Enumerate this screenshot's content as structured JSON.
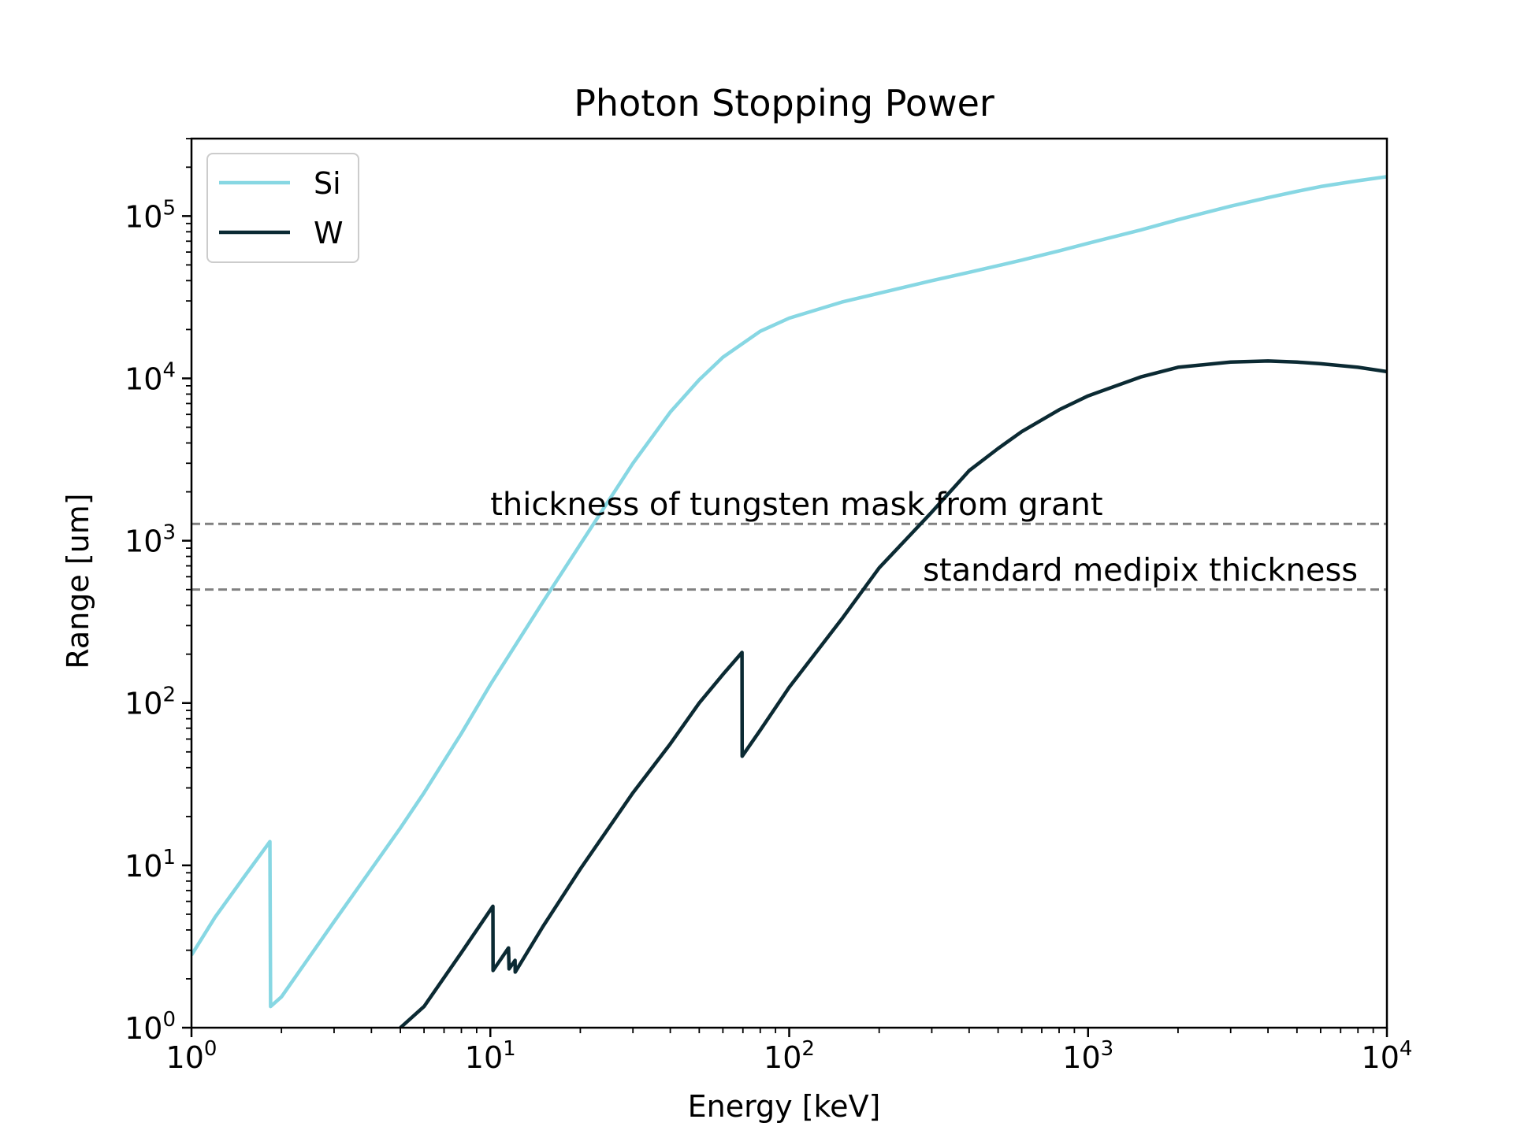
{
  "chart_data": {
    "type": "line",
    "title": "Photon Stopping Power",
    "xlabel": "Energy [keV]",
    "ylabel": "Range [um]",
    "xscale": "log",
    "yscale": "log",
    "xlim": [
      1,
      10000
    ],
    "ylim": [
      1,
      300000
    ],
    "grid": false,
    "legend_position": "top-left",
    "x_ticks": [
      {
        "base": "10",
        "exp": "0",
        "value": 1
      },
      {
        "base": "10",
        "exp": "1",
        "value": 10
      },
      {
        "base": "10",
        "exp": "2",
        "value": 100
      },
      {
        "base": "10",
        "exp": "3",
        "value": 1000
      },
      {
        "base": "10",
        "exp": "4",
        "value": 10000
      }
    ],
    "y_ticks": [
      {
        "base": "10",
        "exp": "0",
        "value": 1
      },
      {
        "base": "10",
        "exp": "1",
        "value": 10
      },
      {
        "base": "10",
        "exp": "2",
        "value": 100
      },
      {
        "base": "10",
        "exp": "3",
        "value": 1000
      },
      {
        "base": "10",
        "exp": "4",
        "value": 10000
      },
      {
        "base": "10",
        "exp": "5",
        "value": 100000
      }
    ],
    "series": [
      {
        "name": "Si",
        "color": "#87d7e3",
        "points": [
          [
            1,
            2.8
          ],
          [
            1.2,
            4.8
          ],
          [
            1.5,
            8.5
          ],
          [
            1.83,
            14
          ],
          [
            1.84,
            1.35
          ],
          [
            2,
            1.55
          ],
          [
            3,
            4.5
          ],
          [
            4,
            9.5
          ],
          [
            5,
            17
          ],
          [
            6,
            28
          ],
          [
            8,
            65
          ],
          [
            10,
            130
          ],
          [
            15,
            420
          ],
          [
            20,
            950
          ],
          [
            30,
            3000
          ],
          [
            40,
            6200
          ],
          [
            50,
            9800
          ],
          [
            60,
            13500
          ],
          [
            80,
            19500
          ],
          [
            100,
            23500
          ],
          [
            150,
            29500
          ],
          [
            200,
            33500
          ],
          [
            300,
            40000
          ],
          [
            400,
            45000
          ],
          [
            500,
            49500
          ],
          [
            600,
            53500
          ],
          [
            800,
            61000
          ],
          [
            1000,
            68000
          ],
          [
            1500,
            82000
          ],
          [
            2000,
            95000
          ],
          [
            3000,
            115000
          ],
          [
            4000,
            130000
          ],
          [
            5000,
            142000
          ],
          [
            6000,
            152000
          ],
          [
            8000,
            165000
          ],
          [
            10000,
            175000
          ]
        ]
      },
      {
        "name": "W",
        "color": "#0b2a33",
        "points": [
          [
            5,
            1.0
          ],
          [
            6,
            1.35
          ],
          [
            8,
            2.9
          ],
          [
            10.2,
            5.6
          ],
          [
            10.21,
            2.25
          ],
          [
            11.5,
            3.1
          ],
          [
            11.55,
            2.3
          ],
          [
            12.1,
            2.6
          ],
          [
            12.11,
            2.2
          ],
          [
            15,
            4.2
          ],
          [
            20,
            9.5
          ],
          [
            30,
            28
          ],
          [
            40,
            56
          ],
          [
            50,
            100
          ],
          [
            60,
            150
          ],
          [
            69.5,
            205
          ],
          [
            69.6,
            47
          ],
          [
            80,
            68
          ],
          [
            100,
            125
          ],
          [
            150,
            330
          ],
          [
            200,
            680
          ],
          [
            300,
            1500
          ],
          [
            400,
            2700
          ],
          [
            500,
            3700
          ],
          [
            600,
            4700
          ],
          [
            800,
            6400
          ],
          [
            1000,
            7800
          ],
          [
            1500,
            10200
          ],
          [
            2000,
            11700
          ],
          [
            3000,
            12600
          ],
          [
            4000,
            12800
          ],
          [
            5000,
            12600
          ],
          [
            6000,
            12300
          ],
          [
            8000,
            11700
          ],
          [
            10000,
            11000
          ]
        ]
      }
    ],
    "reference_lines": [
      {
        "y": 1270,
        "label": "thickness of tungsten mask from grant",
        "color": "#808080",
        "label_x": 10
      },
      {
        "y": 500,
        "label": "standard medipix thickness",
        "color": "#808080",
        "label_x": 280
      }
    ]
  }
}
